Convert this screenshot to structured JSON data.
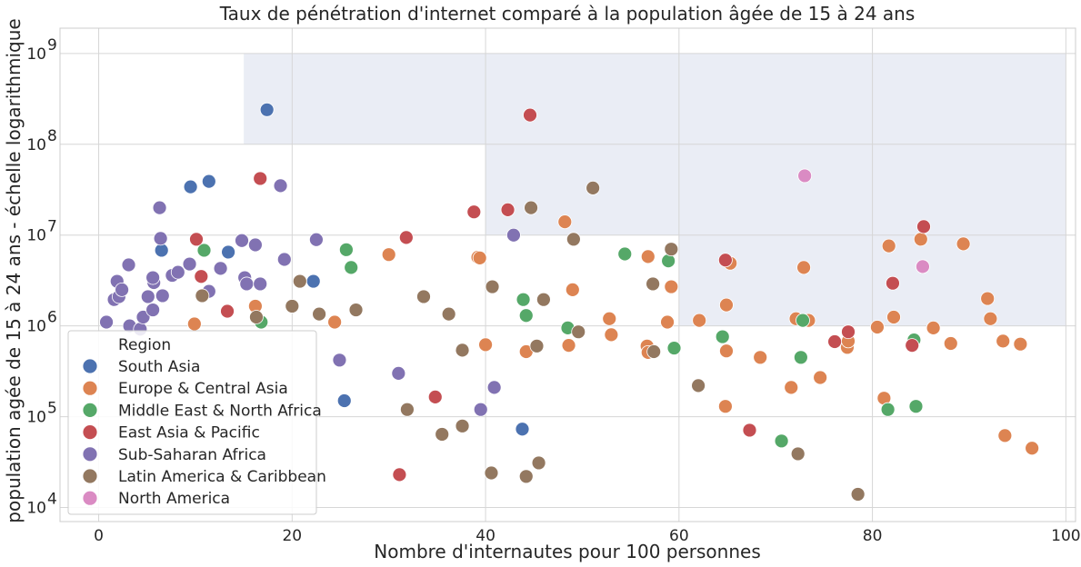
{
  "chart_data": {
    "type": "scatter",
    "title": "Taux de pénétration d'internet comparé à la population âgée de 15 à 24 ans",
    "xlabel": "Nombre d'internautes pour 100 personnes",
    "ylabel": "population agée de 15 à 24 ans - échelle logarithmique",
    "xlim": [
      -4,
      101
    ],
    "ylim": [
      7000,
      1900000000
    ],
    "yscale": "log",
    "xticks": [
      0,
      20,
      40,
      60,
      80,
      100
    ],
    "yticks": [
      {
        "value": 10000,
        "base": "10",
        "exp": "4"
      },
      {
        "value": 100000,
        "base": "10",
        "exp": "5"
      },
      {
        "value": 1000000,
        "base": "10",
        "exp": "6"
      },
      {
        "value": 10000000,
        "base": "10",
        "exp": "7"
      },
      {
        "value": 100000000,
        "base": "10",
        "exp": "8"
      },
      {
        "value": 1000000000,
        "base": "10",
        "exp": "9"
      }
    ],
    "grid": true,
    "legend": {
      "title": "Region",
      "position": "lower-left"
    },
    "highlight_regions": [
      {
        "x": [
          15,
          60
        ],
        "y": [
          100000000,
          1000000000
        ]
      },
      {
        "x": [
          40,
          60
        ],
        "y": [
          10000000,
          100000000
        ]
      },
      {
        "x": [
          60,
          100
        ],
        "y": [
          1000000,
          1000000000
        ]
      }
    ],
    "series": [
      {
        "name": "South Asia",
        "color": "#4c72b0",
        "points": [
          [
            17.4,
            240000000
          ],
          [
            9.5,
            34000000
          ],
          [
            11.4,
            39000000
          ],
          [
            6.5,
            6800000
          ],
          [
            13.4,
            6500000
          ],
          [
            22.2,
            3100000
          ],
          [
            25.4,
            150000
          ],
          [
            43.8,
            73000
          ]
        ]
      },
      {
        "name": "Europe & Central Asia",
        "color": "#dd8452",
        "points": [
          [
            30,
            6100000
          ],
          [
            39.2,
            5700000
          ],
          [
            39.4,
            5600000
          ],
          [
            48.2,
            14000000
          ],
          [
            49,
            2500000
          ],
          [
            52.8,
            1200000
          ],
          [
            53,
            800000
          ],
          [
            56.7,
            600000
          ],
          [
            56.8,
            5800000
          ],
          [
            58.8,
            1100000
          ],
          [
            59.2,
            2700000
          ],
          [
            64.9,
            1700000
          ],
          [
            65.3,
            4900000
          ],
          [
            62.1,
            1150000
          ],
          [
            56.8,
            510000
          ],
          [
            40,
            620000
          ],
          [
            44.2,
            520000
          ],
          [
            48.6,
            610000
          ],
          [
            16.2,
            1650000
          ],
          [
            24.4,
            1100000
          ],
          [
            9.9,
            1050000
          ],
          [
            68.4,
            450000
          ],
          [
            64.9,
            530000
          ],
          [
            71.6,
            210000
          ],
          [
            74.6,
            270000
          ],
          [
            72.1,
            1200000
          ],
          [
            72.9,
            4400000
          ],
          [
            73.4,
            1150000
          ],
          [
            77.4,
            580000
          ],
          [
            77.5,
            680000
          ],
          [
            80.5,
            970000
          ],
          [
            81.7,
            7600000
          ],
          [
            82.2,
            1250000
          ],
          [
            85,
            9000000
          ],
          [
            86.3,
            950000
          ],
          [
            88.1,
            640000
          ],
          [
            89.4,
            8000000
          ],
          [
            91.9,
            2000000
          ],
          [
            92.2,
            1200000
          ],
          [
            93.5,
            680000
          ],
          [
            95.3,
            630000
          ],
          [
            93.7,
            62000
          ],
          [
            96.5,
            45000
          ],
          [
            81.2,
            160000
          ],
          [
            64.8,
            130000
          ]
        ]
      },
      {
        "name": "Middle East & North Africa",
        "color": "#55a868",
        "points": [
          [
            10.9,
            6800000
          ],
          [
            25.6,
            6900000
          ],
          [
            26.1,
            4400000
          ],
          [
            16.8,
            1100000
          ],
          [
            43.9,
            1950000
          ],
          [
            44.2,
            1300000
          ],
          [
            48.5,
            950000
          ],
          [
            54.4,
            6200000
          ],
          [
            58.9,
            5200000
          ],
          [
            59.5,
            570000
          ],
          [
            64.5,
            760000
          ],
          [
            72.6,
            450000
          ],
          [
            72.8,
            1150000
          ],
          [
            84.3,
            700000
          ],
          [
            84.5,
            130000
          ],
          [
            81.6,
            120000
          ],
          [
            70.6,
            54000
          ]
        ]
      },
      {
        "name": "East Asia & Pacific",
        "color": "#c44e52",
        "points": [
          [
            44.6,
            210000000
          ],
          [
            16.7,
            42000000
          ],
          [
            42.3,
            19000000
          ],
          [
            38.8,
            18000000
          ],
          [
            31.8,
            9400000
          ],
          [
            10.1,
            9000000
          ],
          [
            10.6,
            3500000
          ],
          [
            13.3,
            1450000
          ],
          [
            34.8,
            165000
          ],
          [
            31.1,
            23000
          ],
          [
            64.8,
            5300000
          ],
          [
            67.3,
            71000
          ],
          [
            76.1,
            670000
          ],
          [
            77.5,
            860000
          ],
          [
            82.1,
            2950000
          ],
          [
            84.1,
            610000
          ],
          [
            85.3,
            12400000
          ]
        ]
      },
      {
        "name": "Sub-Saharan Africa",
        "color": "#8172b2",
        "points": [
          [
            6.3,
            20000000
          ],
          [
            18.8,
            35000000
          ],
          [
            6.4,
            9200000
          ],
          [
            14.8,
            8700000
          ],
          [
            16.2,
            7800000
          ],
          [
            22.5,
            8900000
          ],
          [
            19.2,
            5400000
          ],
          [
            42.9,
            10000000
          ],
          [
            0.8,
            1100000
          ],
          [
            1.6,
            1950000
          ],
          [
            2.1,
            2100000
          ],
          [
            1.9,
            3100000
          ],
          [
            2.4,
            2500000
          ],
          [
            3.1,
            4700000
          ],
          [
            3.2,
            1000000
          ],
          [
            4.3,
            920000
          ],
          [
            4.6,
            1250000
          ],
          [
            5.1,
            2100000
          ],
          [
            5.6,
            1500000
          ],
          [
            5.7,
            3000000
          ],
          [
            5.6,
            3400000
          ],
          [
            6.6,
            2150000
          ],
          [
            7.6,
            3600000
          ],
          [
            8.2,
            3900000
          ],
          [
            9.4,
            4800000
          ],
          [
            11.4,
            2400000
          ],
          [
            12.6,
            4300000
          ],
          [
            15.1,
            3400000
          ],
          [
            15.3,
            2900000
          ],
          [
            16.7,
            2900000
          ],
          [
            24.9,
            420000
          ],
          [
            31,
            300000
          ],
          [
            39.5,
            120000
          ],
          [
            40.9,
            210000
          ]
        ]
      },
      {
        "name": "Latin America & Caribbean",
        "color": "#937860",
        "points": [
          [
            44.7,
            20000000
          ],
          [
            51.1,
            33000000
          ],
          [
            49.1,
            9000000
          ],
          [
            59.2,
            7000000
          ],
          [
            57.3,
            2900000
          ],
          [
            46,
            1950000
          ],
          [
            49.6,
            860000
          ],
          [
            57.4,
            520000
          ],
          [
            40.7,
            2700000
          ],
          [
            36.2,
            1350000
          ],
          [
            33.6,
            2100000
          ],
          [
            26.6,
            1500000
          ],
          [
            22.8,
            1350000
          ],
          [
            20,
            1650000
          ],
          [
            20.8,
            3100000
          ],
          [
            10.7,
            2150000
          ],
          [
            16.3,
            1250000
          ],
          [
            37.6,
            540000
          ],
          [
            45.3,
            600000
          ],
          [
            31.9,
            120000
          ],
          [
            35.5,
            64000
          ],
          [
            37.6,
            79000
          ],
          [
            40.6,
            24000
          ],
          [
            44.2,
            22000
          ],
          [
            45.5,
            31000
          ],
          [
            62,
            220000
          ],
          [
            72.3,
            39000
          ],
          [
            78.5,
            14000
          ]
        ]
      },
      {
        "name": "North America",
        "color": "#da8bc3",
        "points": [
          [
            73,
            45000000
          ],
          [
            85.2,
            4500000
          ]
        ]
      }
    ]
  }
}
